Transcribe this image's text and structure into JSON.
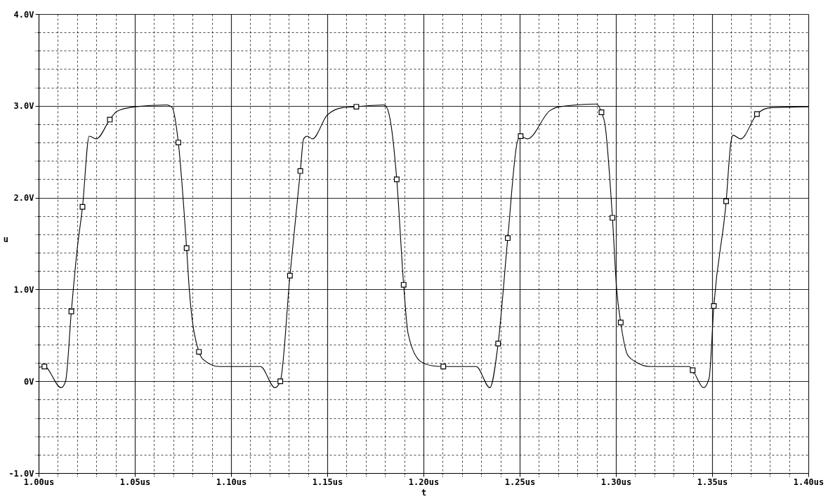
{
  "chart_data": {
    "type": "line",
    "xlabel": "t",
    "ylabel": "u",
    "xlim": [
      1.0,
      1.4
    ],
    "ylim": [
      -1.0,
      4.0
    ],
    "xticks": [
      {
        "value": 1.0,
        "label": "1.00us"
      },
      {
        "value": 1.05,
        "label": "1.05us"
      },
      {
        "value": 1.1,
        "label": "1.10us"
      },
      {
        "value": 1.15,
        "label": "1.15us"
      },
      {
        "value": 1.2,
        "label": "1.20us"
      },
      {
        "value": 1.25,
        "label": "1.25us"
      },
      {
        "value": 1.3,
        "label": "1.30us"
      },
      {
        "value": 1.35,
        "label": "1.35us"
      },
      {
        "value": 1.4,
        "label": "1.40us"
      }
    ],
    "yticks": [
      {
        "value": -1.0,
        "label": "-1.0V"
      },
      {
        "value": 0,
        "label": "0V"
      },
      {
        "value": 1.0,
        "label": "1.0V"
      },
      {
        "value": 2.0,
        "label": "2.0V"
      },
      {
        "value": 3.0,
        "label": "3.0V"
      },
      {
        "value": 4.0,
        "label": "4.0V"
      }
    ],
    "grid": true,
    "series": [
      {
        "type": "line",
        "color": "#000000",
        "marker": "none",
        "line_style": "solid",
        "x": [
          1.0,
          1.003,
          1.0117,
          1.014,
          1.017,
          1.02,
          1.0228,
          1.0263,
          1.03,
          1.037,
          1.0406,
          1.05,
          1.0665,
          1.0694,
          1.0726,
          1.0769,
          1.0783,
          1.0833,
          1.0854,
          1.094,
          1.1153,
          1.1228,
          1.1256,
          1.1306,
          1.136,
          1.1377,
          1.1395,
          1.1423,
          1.15,
          1.158,
          1.1651,
          1.1794,
          1.181,
          1.1833,
          1.1861,
          1.1897,
          1.192,
          1.1982,
          1.2043,
          1.2103,
          1.2274,
          1.2345,
          1.2388,
          1.2438,
          1.2488,
          1.2505,
          1.254,
          1.2658,
          1.2705,
          1.29,
          1.2925,
          1.2943,
          1.2982,
          1.3004,
          1.3025,
          1.306,
          1.3096,
          1.318,
          1.3381,
          1.3399,
          1.3456,
          1.3484,
          1.3509,
          1.3573,
          1.3598,
          1.3609,
          1.3648,
          1.3733,
          1.3804,
          1.4
        ],
        "values": [
          0.15,
          0.16,
          -0.07,
          0.0,
          0.76,
          1.43,
          1.9,
          2.67,
          2.64,
          2.85,
          2.94,
          2.99,
          3.01,
          2.98,
          2.6,
          1.45,
          1.0,
          0.32,
          0.24,
          0.16,
          0.16,
          -0.07,
          0.0,
          1.15,
          2.29,
          2.64,
          2.67,
          2.64,
          2.9,
          2.98,
          2.99,
          3.01,
          2.98,
          2.77,
          2.2,
          1.05,
          0.52,
          0.22,
          0.17,
          0.16,
          0.16,
          -0.07,
          0.41,
          1.56,
          2.61,
          2.67,
          2.64,
          2.95,
          2.99,
          3.02,
          2.93,
          2.8,
          1.78,
          1.0,
          0.64,
          0.29,
          0.22,
          0.16,
          0.16,
          0.12,
          -0.07,
          0.03,
          0.82,
          1.96,
          2.61,
          2.68,
          2.64,
          2.91,
          2.98,
          2.99
        ]
      },
      {
        "type": "scatter",
        "color": "#000000",
        "marker": "square",
        "x": [
          1.003,
          1.017,
          1.0228,
          1.037,
          1.0726,
          1.0769,
          1.0833,
          1.1256,
          1.1306,
          1.136,
          1.1651,
          1.1861,
          1.1897,
          1.2103,
          1.2388,
          1.2438,
          1.2505,
          1.2925,
          1.2982,
          1.3025,
          1.3399,
          1.3509,
          1.3573,
          1.3733
        ],
        "values": [
          0.16,
          0.76,
          1.9,
          2.85,
          2.6,
          1.45,
          0.32,
          0.0,
          1.15,
          2.29,
          2.99,
          2.2,
          1.05,
          0.16,
          0.41,
          1.56,
          2.67,
          2.93,
          1.78,
          0.64,
          0.12,
          0.82,
          1.96,
          2.91
        ]
      }
    ]
  }
}
